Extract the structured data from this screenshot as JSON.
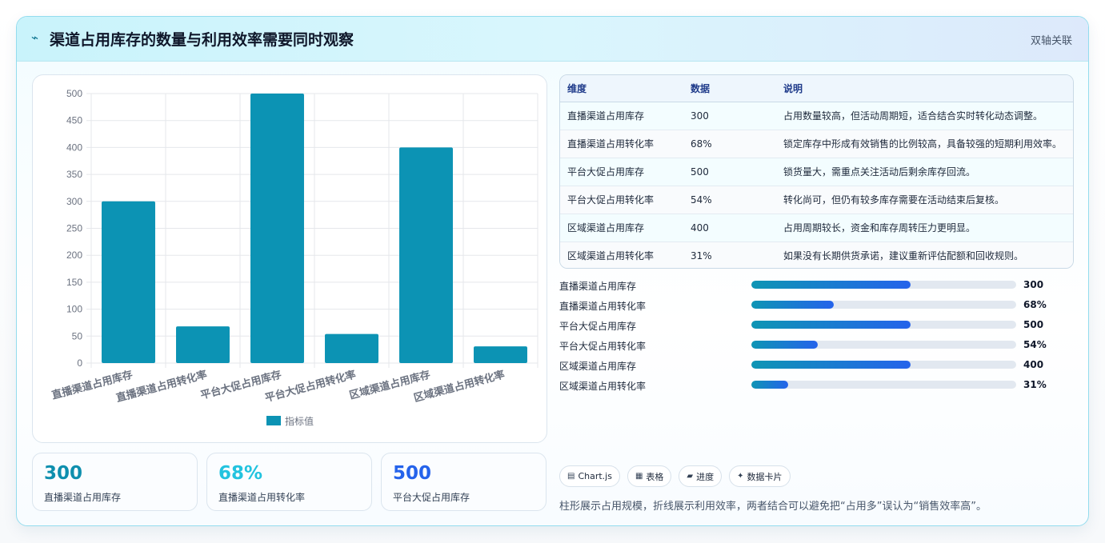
{
  "header": {
    "title": "渠道占用库存的数量与利用效率需要同时观察",
    "tag": "双轴关联",
    "icon": "trend-line-icon"
  },
  "chart_data": {
    "type": "bar",
    "categories": [
      "直播渠道占用库存",
      "直播渠道占用转化率",
      "平台大促占用库存",
      "平台大促占用转化率",
      "区域渠道占用库存",
      "区域渠道占用转化率"
    ],
    "series": [
      {
        "name": "指标值",
        "values": [
          300,
          68,
          500,
          54,
          400,
          31
        ]
      }
    ],
    "ylim": [
      0,
      500
    ],
    "yticks": [
      0,
      50,
      100,
      150,
      200,
      250,
      300,
      350,
      400,
      450,
      500
    ],
    "grid": true,
    "legend": "bottom",
    "bar_color": "#0c93b4"
  },
  "kpis": [
    {
      "value": "300",
      "label": "直播渠道占用库存",
      "color": "#0e8fae"
    },
    {
      "value": "68%",
      "label": "直播渠道占用转化率",
      "color": "#22c3df"
    },
    {
      "value": "500",
      "label": "平台大促占用库存",
      "color": "#2563eb"
    }
  ],
  "table": {
    "headers": [
      "维度",
      "数据",
      "说明"
    ],
    "rows": [
      [
        "直播渠道占用库存",
        "300",
        "占用数量较高，但活动周期短，适合结合实时转化动态调整。"
      ],
      [
        "直播渠道占用转化率",
        "68%",
        "锁定库存中形成有效销售的比例较高，具备较强的短期利用效率。"
      ],
      [
        "平台大促占用库存",
        "500",
        "锁货量大，需重点关注活动后剩余库存回流。"
      ],
      [
        "平台大促占用转化率",
        "54%",
        "转化尚可，但仍有较多库存需要在活动结束后复核。"
      ],
      [
        "区域渠道占用库存",
        "400",
        "占用周期较长，资金和库存周转压力更明显。"
      ],
      [
        "区域渠道占用转化率",
        "31%",
        "如果没有长期供货承诺，建议重新评估配额和回收规则。"
      ]
    ]
  },
  "progress": [
    {
      "label": "直播渠道占用库存",
      "value": "300",
      "fraction": 0.6
    },
    {
      "label": "直播渠道占用转化率",
      "value": "68%",
      "fraction": 0.31
    },
    {
      "label": "平台大促占用库存",
      "value": "500",
      "fraction": 0.6
    },
    {
      "label": "平台大促占用转化率",
      "value": "54%",
      "fraction": 0.25
    },
    {
      "label": "区域渠道占用库存",
      "value": "400",
      "fraction": 0.6
    },
    {
      "label": "区域渠道占用转化率",
      "value": "31%",
      "fraction": 0.14
    }
  ],
  "chips": [
    {
      "icon": "▤",
      "label": "Chart.js"
    },
    {
      "icon": "▦",
      "label": "表格"
    },
    {
      "icon": "▰",
      "label": "进度"
    },
    {
      "icon": "✦",
      "label": "数据卡片"
    }
  ],
  "note": "柱形展示占用规模，折线展示利用效率，两者结合可以避免把“占用多”误认为“销售效率高”。"
}
